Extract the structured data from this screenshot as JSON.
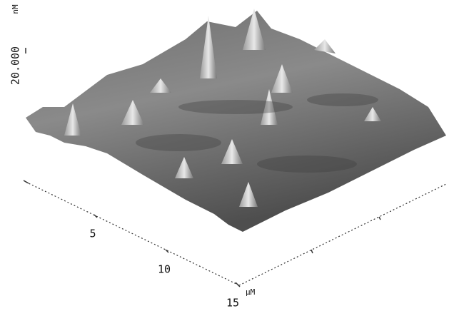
{
  "z_axis": {
    "scale": "20.000",
    "unit": "nM"
  },
  "x_axis": {
    "ticks": [
      "5",
      "10",
      "15"
    ],
    "unit": "µM"
  }
}
